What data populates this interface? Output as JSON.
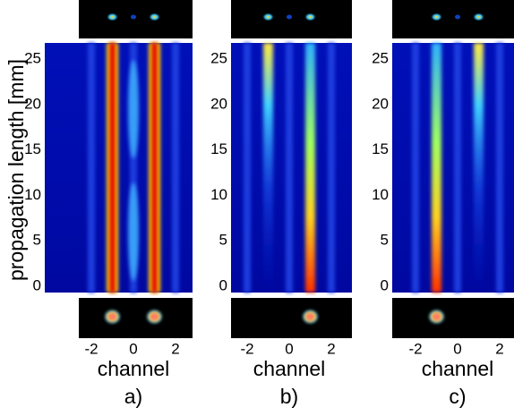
{
  "chart_data": [
    {
      "type": "heatmap",
      "label": "a)",
      "xlabel": "channel",
      "ylabel": "propagation length [mm]",
      "xlim": [
        -3,
        3
      ],
      "xticks": [
        -2,
        0,
        2
      ],
      "ylim": [
        -0.7,
        26.8
      ],
      "yticks": [
        0,
        5,
        10,
        15,
        20,
        25
      ],
      "colormap": "jet"
    },
    {
      "type": "heatmap",
      "label": "b)",
      "xlabel": "channel",
      "xlim": [
        -3,
        3
      ],
      "xticks": [
        -2,
        0,
        2
      ],
      "ylim": [
        -0.7,
        26.8
      ],
      "yticks": [
        0,
        5,
        10,
        15,
        20,
        25
      ],
      "colormap": "jet"
    },
    {
      "type": "heatmap",
      "label": "c)",
      "xlabel": "channel",
      "xlim": [
        -3,
        3
      ],
      "xticks": [
        -2,
        0,
        2
      ],
      "ylim": [
        -0.7,
        26.8
      ],
      "yticks": [
        0,
        5,
        10,
        15,
        20,
        25
      ],
      "colormap": "jet"
    }
  ]
}
